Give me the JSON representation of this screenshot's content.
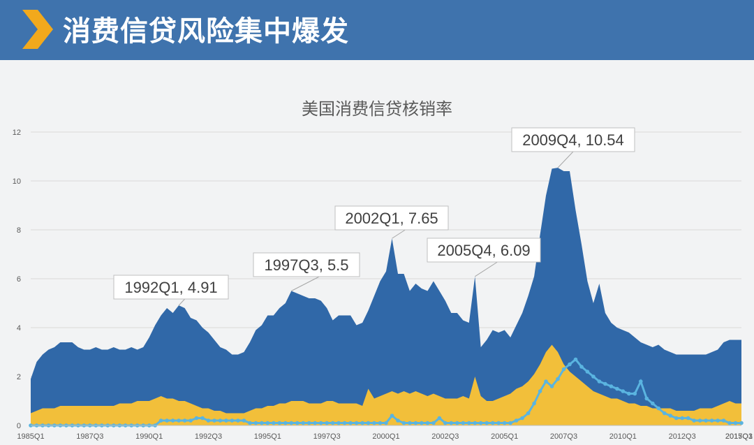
{
  "header": {
    "title": "消费信贷风险集中爆发"
  },
  "chart_data": {
    "type": "area",
    "title": "美国消费信贷核销率",
    "ylim": [
      0,
      12
    ],
    "yticks": [
      0,
      2,
      4,
      6,
      8,
      10,
      12
    ],
    "x_tick_labels": [
      "1985Q1",
      "1987Q3",
      "1990Q1",
      "1992Q3",
      "1995Q1",
      "1997Q3",
      "2000Q1",
      "2002Q3",
      "2005Q1",
      "2007Q3",
      "2010Q1",
      "2012Q3",
      "2015Q1",
      "2017Q3"
    ],
    "colors": {
      "dark_area": "#3068a8",
      "yellow_area": "#f2bf3a",
      "line": "#5ab4e0"
    },
    "series": [
      {
        "values": [
          1.9,
          2.6,
          2.9,
          3.1,
          3.2,
          3.4,
          3.4,
          3.4,
          3.2,
          3.1,
          3.1,
          3.2,
          3.1,
          3.1,
          3.2,
          3.1,
          3.1,
          3.2,
          3.1,
          3.2,
          3.6,
          4.1,
          4.5,
          4.8,
          4.6,
          4.91,
          4.8,
          4.4,
          4.3,
          4.0,
          3.8,
          3.5,
          3.2,
          3.1,
          2.9,
          2.9,
          3.0,
          3.4,
          3.9,
          4.1,
          4.5,
          4.5,
          4.8,
          5.0,
          5.5,
          5.4,
          5.3,
          5.2,
          5.2,
          5.1,
          4.8,
          4.3,
          4.5,
          4.5,
          4.5,
          4.1,
          4.2,
          4.7,
          5.3,
          5.9,
          6.3,
          7.65,
          6.2,
          6.2,
          5.5,
          5.8,
          5.6,
          5.5,
          5.9,
          5.5,
          5.1,
          4.6,
          4.6,
          4.3,
          4.2,
          6.09,
          3.2,
          3.5,
          3.9,
          3.8,
          3.9,
          3.6,
          4.1,
          4.6,
          5.3,
          6.1,
          7.8,
          9.4,
          10.5,
          10.54,
          10.4,
          10.4,
          8.8,
          7.4,
          5.9,
          5.0,
          5.8,
          4.6,
          4.2,
          4.0,
          3.9,
          3.8,
          3.6,
          3.4,
          3.3,
          3.2,
          3.3,
          3.1,
          3.0,
          2.9,
          2.9,
          2.9,
          2.9,
          2.9,
          2.9,
          3.0,
          3.1,
          3.4,
          3.5,
          3.5,
          3.5
        ]
      },
      {
        "values": [
          0.5,
          0.6,
          0.7,
          0.7,
          0.7,
          0.8,
          0.8,
          0.8,
          0.8,
          0.8,
          0.8,
          0.8,
          0.8,
          0.8,
          0.8,
          0.9,
          0.9,
          0.9,
          1.0,
          1.0,
          1.0,
          1.1,
          1.2,
          1.1,
          1.1,
          1.0,
          1.0,
          0.9,
          0.8,
          0.7,
          0.7,
          0.6,
          0.6,
          0.5,
          0.5,
          0.5,
          0.5,
          0.6,
          0.7,
          0.7,
          0.8,
          0.8,
          0.9,
          0.9,
          1.0,
          1.0,
          1.0,
          0.9,
          0.9,
          0.9,
          1.0,
          1.0,
          0.9,
          0.9,
          0.9,
          0.9,
          0.8,
          1.5,
          1.1,
          1.2,
          1.3,
          1.4,
          1.3,
          1.4,
          1.3,
          1.4,
          1.3,
          1.2,
          1.3,
          1.2,
          1.1,
          1.1,
          1.1,
          1.2,
          1.1,
          2.0,
          1.2,
          1.0,
          1.0,
          1.1,
          1.2,
          1.3,
          1.5,
          1.6,
          1.8,
          2.1,
          2.5,
          3.0,
          3.3,
          3.0,
          2.5,
          2.2,
          2.0,
          1.8,
          1.6,
          1.4,
          1.3,
          1.2,
          1.1,
          1.1,
          1.0,
          0.9,
          0.9,
          0.8,
          0.8,
          0.7,
          0.7,
          0.7,
          0.7,
          0.6,
          0.6,
          0.6,
          0.6,
          0.7,
          0.7,
          0.7,
          0.8,
          0.9,
          1.0,
          0.9,
          0.9
        ]
      },
      {
        "values": [
          0,
          0,
          0,
          0,
          0,
          0,
          0,
          0,
          0,
          0,
          0,
          0,
          0,
          0,
          0,
          0,
          0,
          0,
          0,
          0,
          0,
          0,
          0.2,
          0.2,
          0.2,
          0.2,
          0.2,
          0.2,
          0.3,
          0.3,
          0.2,
          0.2,
          0.2,
          0.2,
          0.2,
          0.2,
          0.2,
          0.1,
          0.1,
          0.1,
          0.1,
          0.1,
          0.1,
          0.1,
          0.1,
          0.1,
          0.1,
          0.1,
          0.1,
          0.1,
          0.1,
          0.1,
          0.1,
          0.1,
          0.1,
          0.1,
          0.1,
          0.1,
          0.1,
          0.1,
          0.1,
          0.4,
          0.2,
          0.1,
          0.1,
          0.1,
          0.1,
          0.1,
          0.1,
          0.3,
          0.1,
          0.1,
          0.1,
          0.1,
          0.1,
          0.1,
          0.1,
          0.1,
          0.1,
          0.1,
          0.1,
          0.1,
          0.2,
          0.3,
          0.5,
          0.9,
          1.4,
          1.8,
          1.6,
          1.9,
          2.3,
          2.5,
          2.7,
          2.4,
          2.2,
          2.0,
          1.8,
          1.7,
          1.6,
          1.5,
          1.4,
          1.3,
          1.3,
          1.8,
          1.1,
          0.9,
          0.7,
          0.5,
          0.4,
          0.3,
          0.3,
          0.3,
          0.2,
          0.2,
          0.2,
          0.2,
          0.2,
          0.2,
          0.1,
          0.1,
          0.1
        ]
      }
    ],
    "annotations": [
      {
        "label": "1992Q1, 4.91",
        "index": 25,
        "value": 4.91
      },
      {
        "label": "1997Q3, 5.5",
        "index": 44,
        "value": 5.5
      },
      {
        "label": "2002Q1, 7.65",
        "index": 61,
        "value": 7.65
      },
      {
        "label": "2005Q4, 6.09",
        "index": 75,
        "value": 6.09
      },
      {
        "label": "2009Q4, 10.54",
        "index": 89,
        "value": 10.54
      }
    ]
  }
}
